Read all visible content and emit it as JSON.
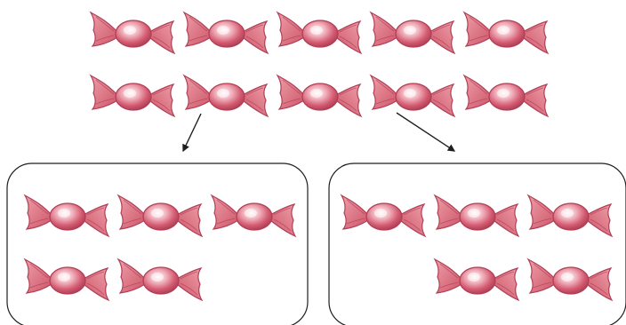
{
  "diagram": {
    "top_group": {
      "rows": [
        5,
        5
      ],
      "item_icon": "candy-icon"
    },
    "boxes": [
      {
        "name": "left",
        "rows": [
          3,
          2
        ],
        "alignment": "left"
      },
      {
        "name": "right",
        "rows": [
          3,
          2
        ],
        "alignment": "right"
      }
    ],
    "arrows": [
      {
        "from": "top-row-2-candy-2",
        "to": "box-left"
      },
      {
        "from": "top-row-2-candy-4",
        "to": "box-right"
      }
    ],
    "colors": {
      "candy_fill": "#d85d73",
      "candy_stroke": "#b13e55",
      "candy_highlight": "#fbeef2",
      "wrapper_fill": "#e2848f",
      "box_stroke": "#1f1f1f",
      "arrow_stroke": "#1f1f1f"
    }
  }
}
